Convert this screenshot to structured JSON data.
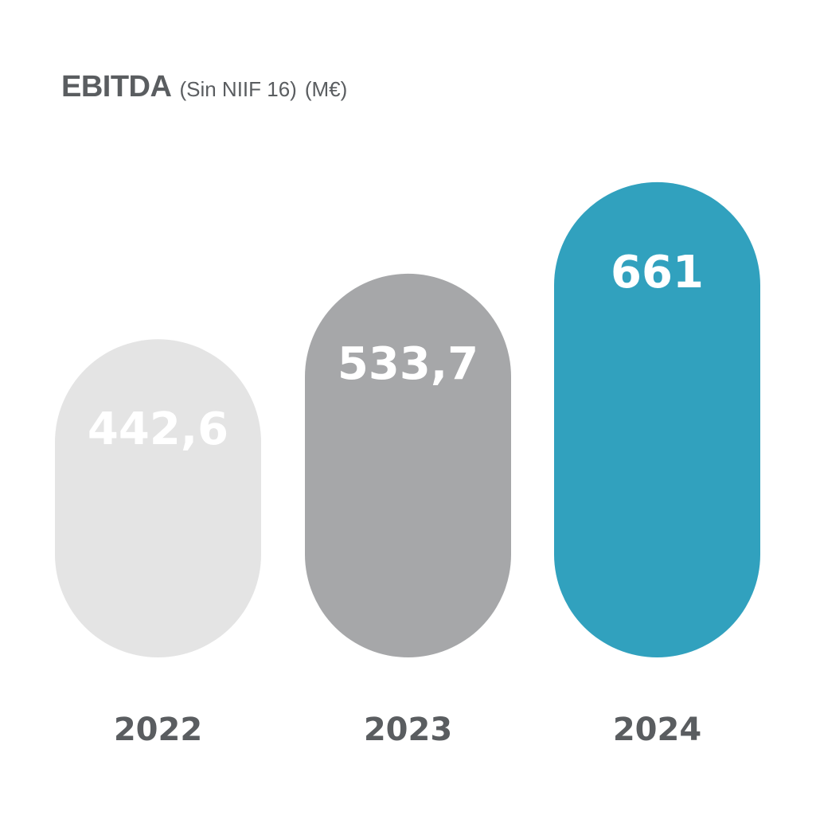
{
  "chart_data": {
    "type": "bar",
    "title": "EBITDA",
    "subtitle": "(Sin NIIF 16)",
    "unit": "(M€)",
    "categories": [
      "2022",
      "2023",
      "2024"
    ],
    "values": [
      442.6,
      533.7,
      661
    ],
    "value_labels": [
      "442,6",
      "533,7",
      "661"
    ],
    "colors": [
      "#e4e4e4",
      "#a6a7a9",
      "#31a1be"
    ],
    "label_colors": [
      "#ffffff",
      "#ffffff",
      "#ffffff"
    ],
    "category_label_color": "#5a5d60",
    "xlabel": "",
    "ylabel": "",
    "grid": false,
    "legend": "none"
  }
}
